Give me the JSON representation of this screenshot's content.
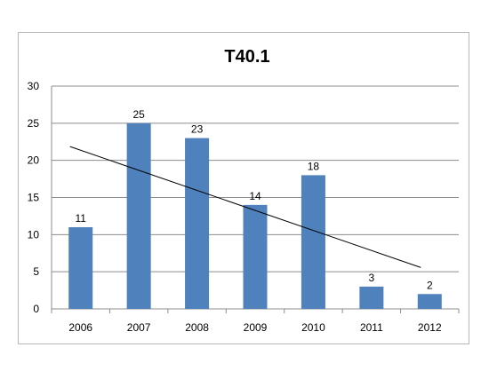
{
  "chart_data": {
    "type": "bar",
    "title": "T40.1",
    "categories": [
      "2006",
      "2007",
      "2008",
      "2009",
      "2010",
      "2011",
      "2012"
    ],
    "values": [
      11,
      25,
      23,
      14,
      18,
      3,
      2
    ],
    "ylim": [
      0,
      30
    ],
    "yticks": [
      "0",
      "5",
      "10",
      "15",
      "20",
      "25",
      "30"
    ],
    "grid": true,
    "data_labels": true,
    "trendline": "linear",
    "colors": {
      "bar": "#4f81bd",
      "grid": "#8c8c8c",
      "trendline": "#000000",
      "text": "#000000"
    }
  }
}
